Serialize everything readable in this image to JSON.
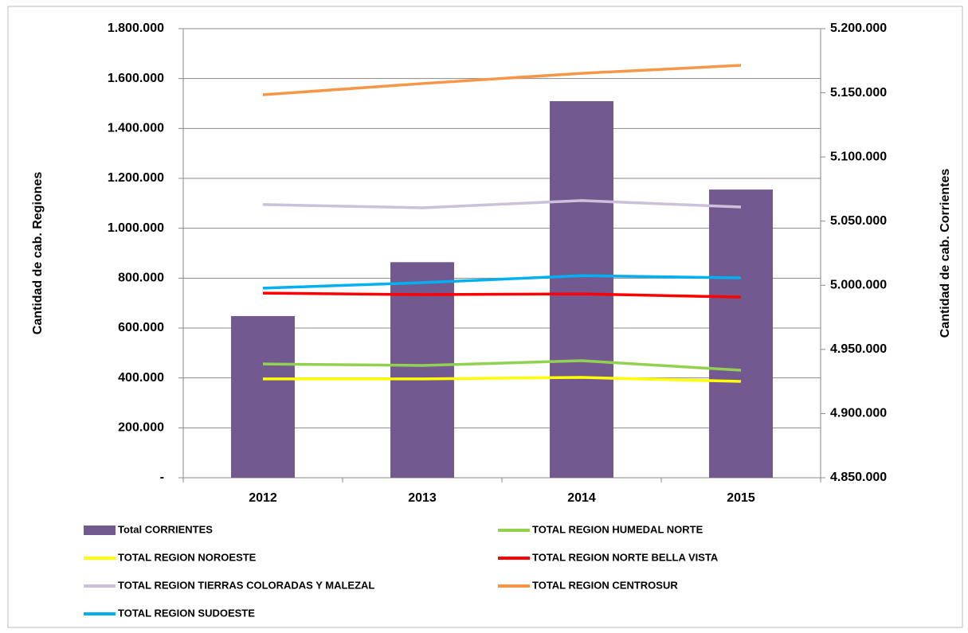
{
  "chart_data": {
    "type": "combo",
    "y_label": "Cantidad de cab. Regiones",
    "y2_label": "Cantidad de cab. Corrientes",
    "categories": [
      "2012",
      "2013",
      "2014",
      "2015"
    ],
    "series": [
      {
        "name": "Total CORRIENTES",
        "type": "bar",
        "axis": "y2",
        "color": "#725990",
        "values": [
          4976000,
          5018000,
          5143500,
          5074600
        ]
      },
      {
        "name": "TOTAL REGION HUMEDAL NORTE",
        "type": "line",
        "color": "#92d050",
        "values": [
          456000,
          450000,
          469000,
          431000
        ]
      },
      {
        "name": "TOTAL REGION NOROESTE",
        "type": "line",
        "color": "#ffff00",
        "values": [
          396000,
          396000,
          402000,
          386000
        ]
      },
      {
        "name": "TOTAL REGION NORTE BELLA VISTA",
        "type": "line",
        "color": "#ff0000",
        "values": [
          740000,
          734000,
          737000,
          724000
        ]
      },
      {
        "name": "TOTAL REGION TIERRAS COLORADAS Y MALEZAL",
        "type": "line",
        "color": "#ccc0da",
        "values": [
          1095000,
          1082000,
          1111000,
          1085000
        ]
      },
      {
        "name": "TOTAL REGION CENTROSUR",
        "type": "line",
        "color": "#f79646",
        "values": [
          1535000,
          1580000,
          1621000,
          1653000
        ]
      },
      {
        "name": "TOTAL REGION SUDOESTE",
        "type": "line",
        "color": "#00b0f0",
        "values": [
          760000,
          782000,
          810000,
          801000
        ]
      }
    ],
    "ylim": [
      0,
      1800000
    ],
    "yticks": [
      {
        "value": 0,
        "label": "-"
      },
      {
        "value": 200000,
        "label": "200.000"
      },
      {
        "value": 400000,
        "label": "400.000"
      },
      {
        "value": 600000,
        "label": "600.000"
      },
      {
        "value": 800000,
        "label": "800.000"
      },
      {
        "value": 1000000,
        "label": "1.000.000"
      },
      {
        "value": 1200000,
        "label": "1.200.000"
      },
      {
        "value": 1400000,
        "label": "1.400.000"
      },
      {
        "value": 1600000,
        "label": "1.600.000"
      },
      {
        "value": 1800000,
        "label": "1.800.000"
      }
    ],
    "y2lim": [
      4850000,
      5200000
    ],
    "y2ticks": [
      {
        "value": 4850000,
        "label": "4.850.000"
      },
      {
        "value": 4900000,
        "label": "4.900.000"
      },
      {
        "value": 4950000,
        "label": "4.950.000"
      },
      {
        "value": 5000000,
        "label": "5.000.000"
      },
      {
        "value": 5050000,
        "label": "5.050.000"
      },
      {
        "value": 5100000,
        "label": "5.100.000"
      },
      {
        "value": 5150000,
        "label": "5.150.000"
      },
      {
        "value": 5200000,
        "label": "5.200.000"
      }
    ],
    "grid": true
  }
}
